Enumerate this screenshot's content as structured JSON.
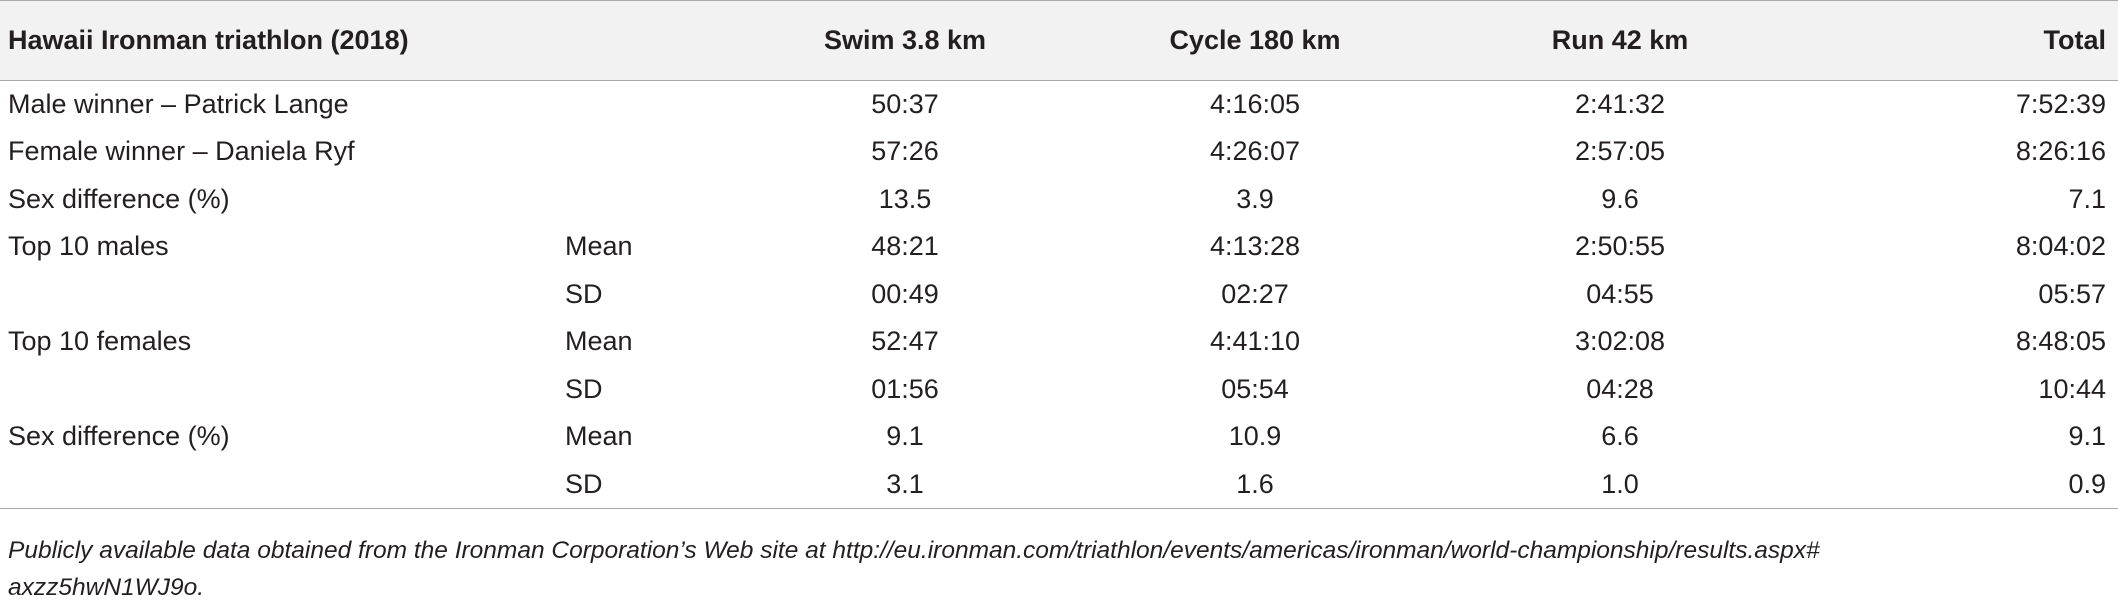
{
  "table": {
    "headers": {
      "label": "Hawaii Ironman triathlon (2018)",
      "stat": "",
      "swim": "Swim 3.8 km",
      "cycle": "Cycle 180 km",
      "run": "Run 42 km",
      "total": "Total"
    },
    "rows": [
      {
        "label": "Male winner – Patrick Lange",
        "stat": "",
        "swim": "50:37",
        "cycle": "4:16:05",
        "run": "2:41:32",
        "total": "7:52:39"
      },
      {
        "label": "Female winner – Daniela Ryf",
        "stat": "",
        "swim": "57:26",
        "cycle": "4:26:07",
        "run": "2:57:05",
        "total": "8:26:16"
      },
      {
        "label": "Sex difference (%)",
        "stat": "",
        "swim": "13.5",
        "cycle": "3.9",
        "run": "9.6",
        "total": "7.1"
      },
      {
        "label": "Top 10 males",
        "stat": "Mean",
        "swim": "48:21",
        "cycle": "4:13:28",
        "run": "2:50:55",
        "total": "8:04:02"
      },
      {
        "label": "",
        "stat": "SD",
        "swim": "00:49",
        "cycle": "02:27",
        "run": "04:55",
        "total": "05:57"
      },
      {
        "label": "Top 10 females",
        "stat": "Mean",
        "swim": "52:47",
        "cycle": "4:41:10",
        "run": "3:02:08",
        "total": "8:48:05"
      },
      {
        "label": "",
        "stat": "SD",
        "swim": "01:56",
        "cycle": "05:54",
        "run": "04:28",
        "total": "10:44"
      },
      {
        "label": "Sex difference (%)",
        "stat": "Mean",
        "swim": "9.1",
        "cycle": "10.9",
        "run": "6.6",
        "total": "9.1"
      },
      {
        "label": "",
        "stat": "SD",
        "swim": "3.1",
        "cycle": "1.6",
        "run": "1.0",
        "total": "0.9"
      }
    ]
  },
  "footnote": {
    "line1": "Publicly available data obtained from the Ironman Corporation’s Web site at http://eu.ironman.com/triathlon/events/americas/ironman/world-championship/results.aspx#",
    "line2": "axzz5hwN1WJ9o."
  }
}
